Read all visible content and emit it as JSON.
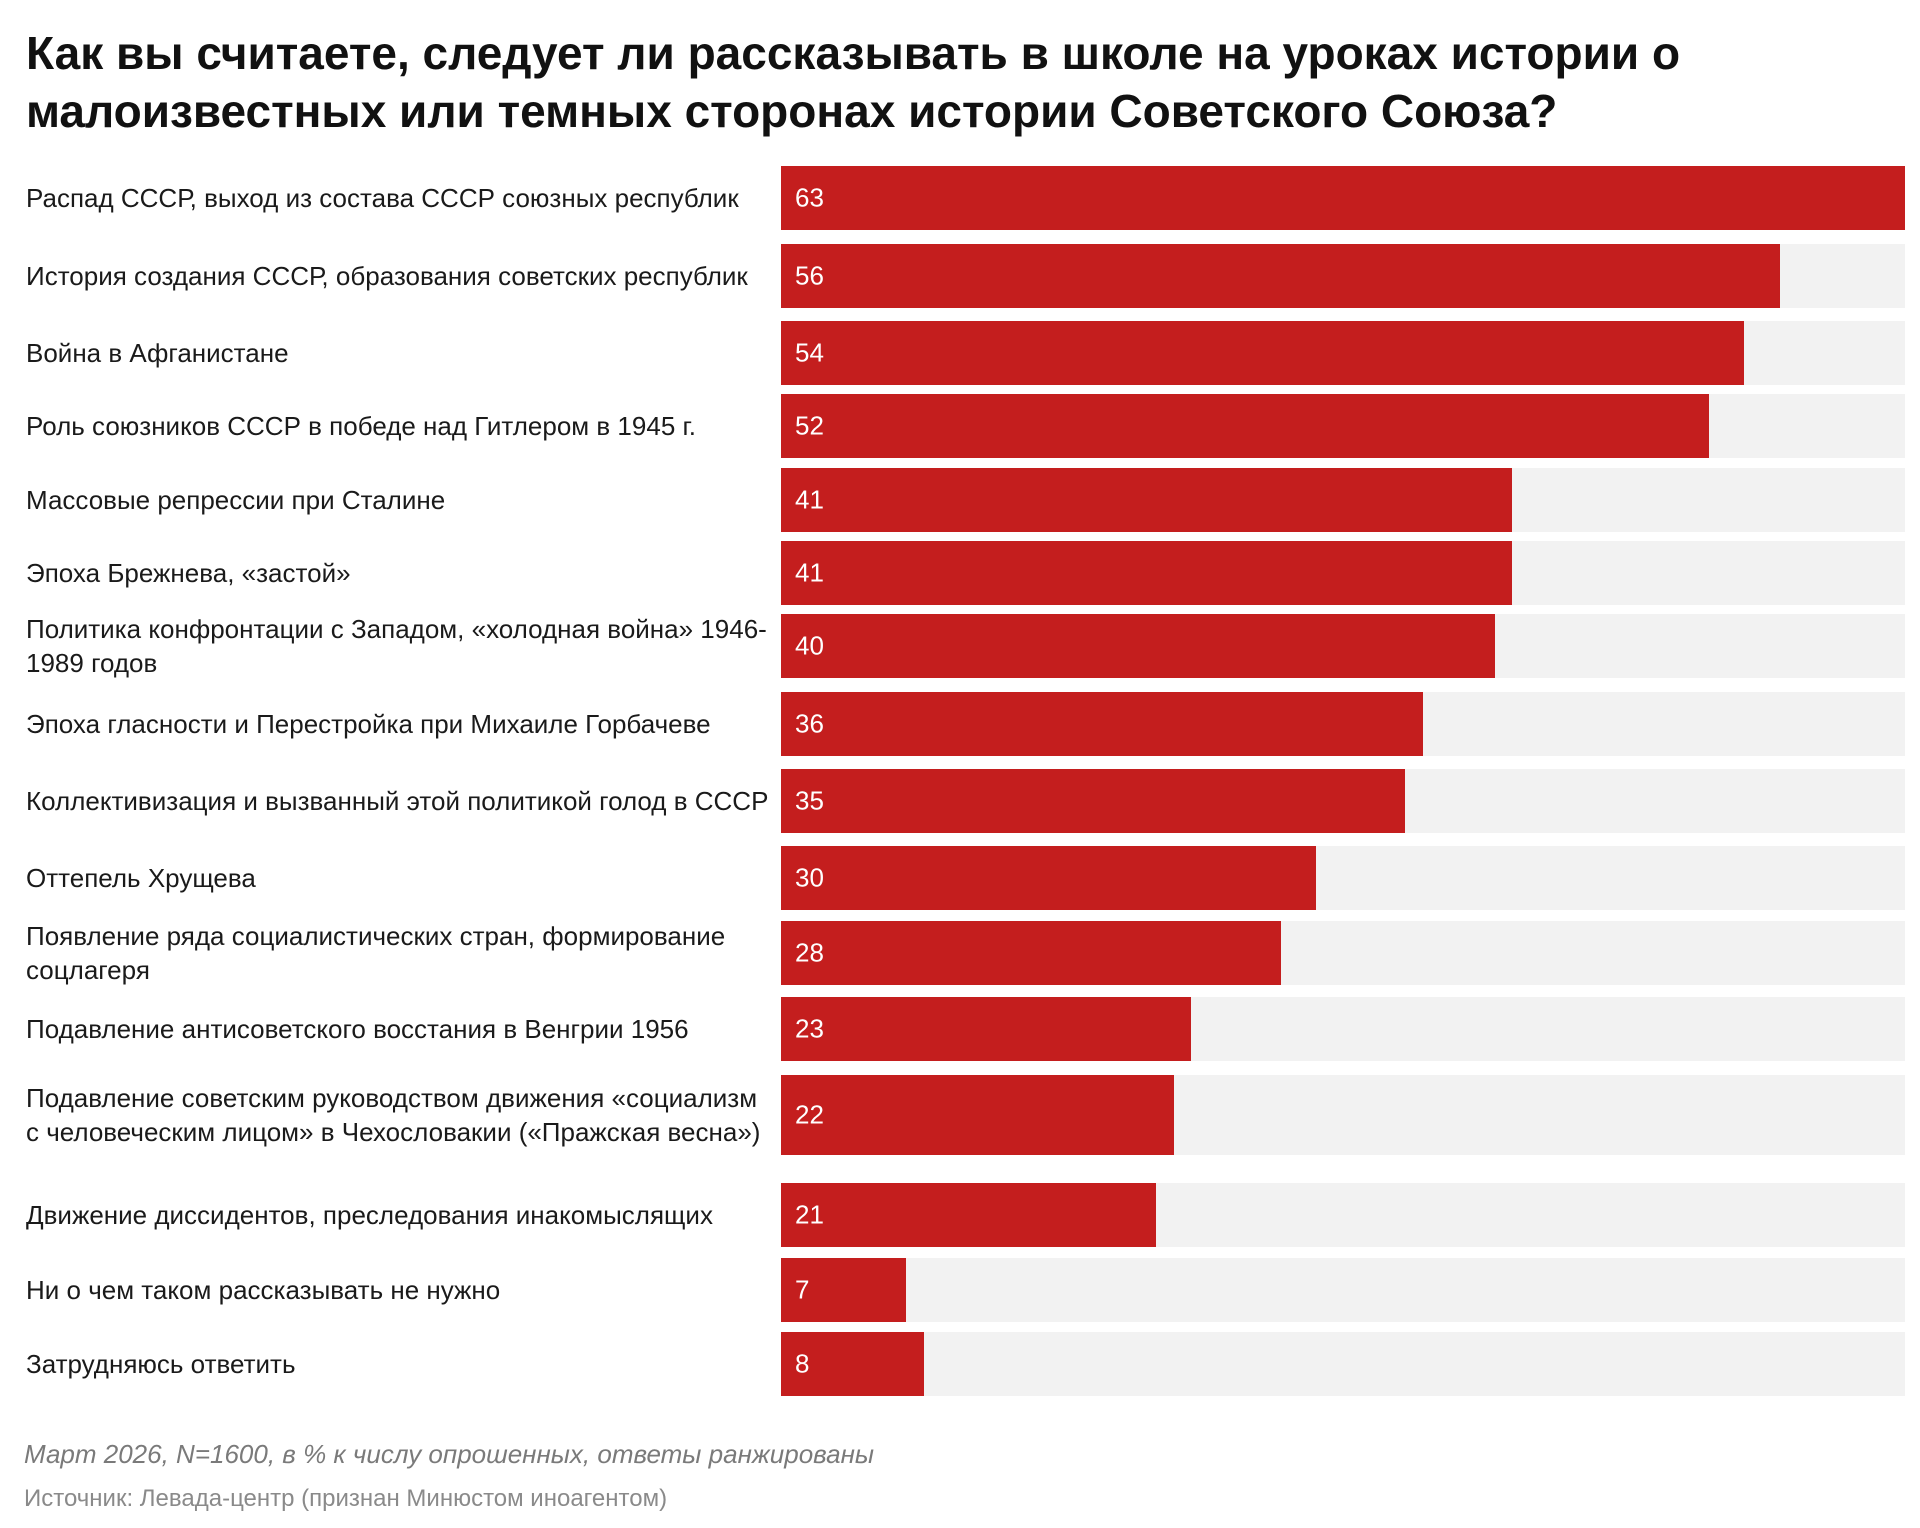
{
  "chart_data": {
    "type": "bar",
    "orientation": "horizontal",
    "title": "Как вы считаете, следует ли рассказывать в школе на уроках истории о малоизвестных или темных сторонах истории Советского Союза?",
    "xlim": [
      0,
      63
    ],
    "grid": false,
    "legend": "none",
    "categories": [
      "Распад СССР, выход из состава СССР союзных республик",
      "История создания СССР, образования советских республик",
      "Война в Афганистане",
      "Роль союзников СССР в победе над Гитлером в 1945 г.",
      "Массовые репрессии при Сталине",
      "Эпоха Брежнева, «застой»",
      "Политика конфронтации с Западом, «холодная война» 1946-1989 годов",
      "Эпоха гласности и Перестройка при Михаиле Горбачеве",
      "Коллективизация и вызванный этой политикой голод в СССР",
      "Оттепель Хрущева",
      "Появление ряда социалистических стран, формирование соцлагеря",
      "Подавление антисоветского восстания в Венгрии 1956",
      "Подавление советским руководством движения «социализм с человеческим лицом» в Чехословакии («Пражская весна»)",
      "Движение диссидентов, преследования инакомыслящих",
      "Ни о чем таком рассказывать не нужно",
      "Затрудняюсь ответить"
    ],
    "values": [
      63,
      56,
      54,
      52,
      41,
      41,
      40,
      36,
      35,
      30,
      28,
      23,
      22,
      21,
      7,
      8
    ]
  },
  "colors": {
    "bar": "#c41e1e",
    "track": "#f2f2f2",
    "value_text": "#ffffff"
  },
  "footer": {
    "note": "Март 2026, N=1600, в % к числу опрошенных, ответы ранжированы",
    "source": "Источник: Левада-центр (признан Минюстом иноагентом)"
  }
}
